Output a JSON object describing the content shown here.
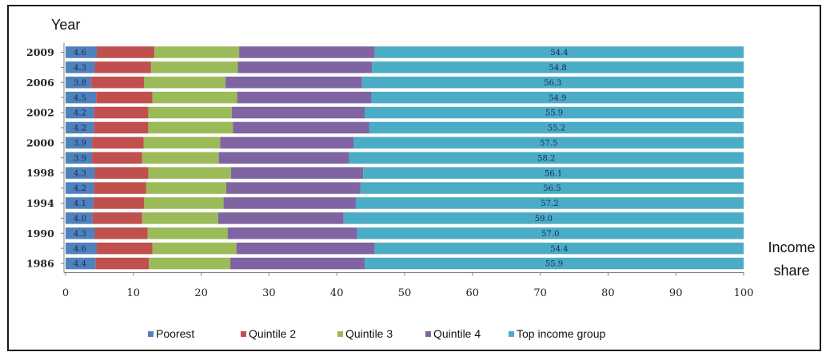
{
  "chart_data": {
    "type": "bar",
    "orientation": "horizontal",
    "stacked": true,
    "ylabel": "Year",
    "xlabel": "Income share",
    "xlim": [
      0,
      100
    ],
    "xticks": [
      0,
      10,
      20,
      30,
      40,
      50,
      60,
      70,
      80,
      90,
      100
    ],
    "rows": [
      {
        "label": "2009"
      },
      {
        "label": ""
      },
      {
        "label": "2006"
      },
      {
        "label": ""
      },
      {
        "label": "2002"
      },
      {
        "label": ""
      },
      {
        "label": "2000"
      },
      {
        "label": ""
      },
      {
        "label": "1998"
      },
      {
        "label": ""
      },
      {
        "label": "1994"
      },
      {
        "label": ""
      },
      {
        "label": "1990"
      },
      {
        "label": ""
      },
      {
        "label": "1986"
      }
    ],
    "series": [
      {
        "name": "Poorest",
        "color": "#4f81bd",
        "values": [
          4.6,
          4.3,
          3.8,
          4.5,
          4.2,
          4.2,
          3.9,
          3.9,
          4.3,
          4.2,
          4.1,
          4.0,
          4.3,
          4.6,
          4.4
        ],
        "labels": [
          "4.6",
          "4.3",
          "3.8",
          "4.5",
          "4.2",
          "4.2",
          "3.9",
          "3.9",
          "4.3",
          "4.2",
          "4.1",
          "4.0",
          "4.3",
          "4.6",
          "4.4"
        ]
      },
      {
        "name": "Quintile 2",
        "color": "#c0504d",
        "values": [
          8.5,
          8.3,
          7.8,
          8.3,
          8.0,
          8.0,
          7.6,
          7.4,
          7.9,
          7.7,
          7.5,
          7.3,
          7.8,
          8.2,
          7.9
        ]
      },
      {
        "name": "Quintile 3",
        "color": "#9bbb59",
        "values": [
          12.5,
          12.8,
          12.0,
          12.5,
          12.3,
          12.5,
          11.3,
          11.3,
          12.2,
          11.8,
          11.7,
          11.2,
          11.8,
          12.4,
          12.0
        ]
      },
      {
        "name": "Quintile 4",
        "color": "#8064a2",
        "values": [
          20.0,
          19.8,
          20.1,
          19.8,
          19.6,
          20.1,
          19.7,
          19.2,
          19.5,
          19.8,
          19.5,
          18.5,
          19.1,
          20.4,
          19.8
        ]
      },
      {
        "name": "Top income group",
        "color": "#4bacc6",
        "values": [
          54.4,
          54.8,
          56.3,
          54.9,
          55.9,
          55.2,
          57.5,
          58.2,
          56.1,
          56.5,
          57.2,
          59.0,
          57.0,
          54.4,
          55.9
        ],
        "labels": [
          "54.4",
          "54.8",
          "56.3",
          "54.9",
          "55.9",
          "55.2",
          "57.5",
          "58.2",
          "56.1",
          "56.5",
          "57.2",
          "59.0",
          "57.0",
          "54.4",
          "55.9"
        ]
      }
    ],
    "legend_position": "bottom",
    "grid": false
  }
}
